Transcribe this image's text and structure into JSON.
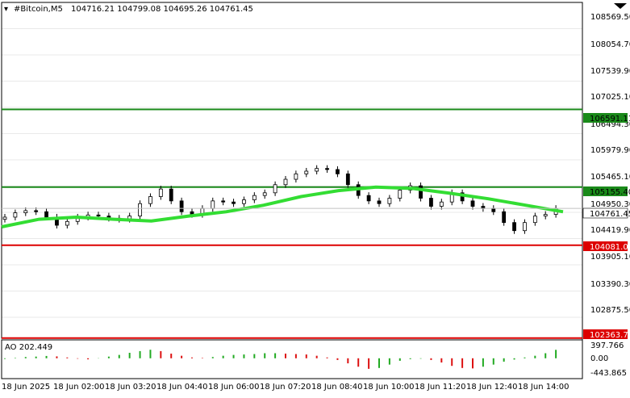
{
  "header": {
    "symbol": "#Bitcoin,M5",
    "ohlc": "104716.21 104799.08 104695.26 104761.45"
  },
  "price_axis": {
    "ticks": [
      "108569.50",
      "108054.70",
      "107539.90",
      "107025.10",
      "106494.30",
      "105979.90",
      "105465.10",
      "104950.30",
      "104419.90",
      "103905.10",
      "103390.30",
      "102875.50",
      "102360.70"
    ],
    "current_price": "104761.45",
    "level_labels": [
      "106591.11",
      "105155.40",
      "104081.03",
      "102363.75"
    ]
  },
  "time_axis": {
    "labels": [
      "18 Jun 2025",
      "18 Jun 02:00",
      "18 Jun 03:20",
      "18 Jun 04:40",
      "18 Jun 06:00",
      "18 Jun 07:20",
      "18 Jun 08:40",
      "18 Jun 10:00",
      "18 Jun 11:20",
      "18 Jun 12:40",
      "18 Jun 14:00"
    ]
  },
  "oscillator": {
    "title": "AO 202.449",
    "ticks": [
      "397.766",
      "0.00",
      "-443.865"
    ]
  },
  "colors": {
    "background": "#ffffff",
    "grid": "#c8c8c8",
    "candle": "#000000",
    "moving_average": "#33dd33",
    "level_green": "#1a8a1a",
    "level_red": "#dd0000",
    "ao_up": "#22aa22",
    "ao_down": "#dd1111",
    "current_price_label": "#ffffff"
  },
  "chart_data": {
    "type": "candlestick",
    "symbol": "#Bitcoin",
    "timeframe": "M5",
    "close_path": [
      104600,
      104680,
      104720,
      104700,
      104600,
      104450,
      104520,
      104600,
      104640,
      104620,
      104580,
      104560,
      104620,
      104850,
      104980,
      105120,
      104900,
      104700,
      104650,
      104760,
      104900,
      104880,
      104850,
      104920,
      105000,
      105050,
      105200,
      105300,
      105400,
      105450,
      105500,
      105480,
      105400,
      105200,
      105000,
      104900,
      104850,
      104950,
      105100,
      105180,
      104950,
      104800,
      104880,
      105050,
      104900,
      104800,
      104760,
      104700,
      104500,
      104350,
      104500,
      104620,
      104650,
      104761
    ],
    "moving_average_path": [
      104420,
      104560,
      104600,
      104560,
      104530,
      104620,
      104700,
      104820,
      104980,
      105090,
      105155,
      105130,
      105040,
      104940,
      104820,
      104700
    ],
    "levels": [
      106591.11,
      105155.4,
      104081.03,
      102363.75
    ],
    "ao_values": [
      -15,
      10,
      30,
      40,
      55,
      45,
      20,
      -10,
      -25,
      -5,
      40,
      80,
      130,
      170,
      202,
      170,
      110,
      60,
      20,
      10,
      30,
      60,
      80,
      90,
      100,
      120,
      120,
      110,
      100,
      90,
      60,
      20,
      -40,
      -120,
      -200,
      -250,
      -230,
      -150,
      -60,
      -20,
      -10,
      -40,
      -100,
      -180,
      -230,
      -240,
      -200,
      -150,
      -80,
      -30,
      20,
      60,
      120,
      200
    ],
    "ao_range": [
      -443.865,
      397.766
    ],
    "price_range": [
      102360.7,
      108569.5
    ]
  }
}
